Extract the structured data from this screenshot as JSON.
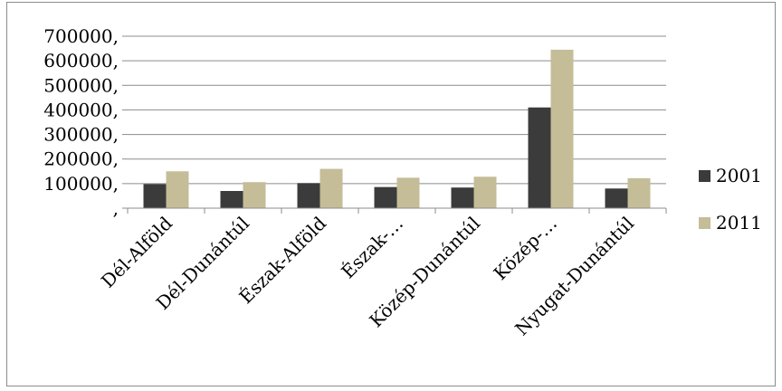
{
  "chart_data": {
    "type": "bar",
    "title": "",
    "xlabel": "",
    "ylabel": "",
    "ylim": [
      0,
      700000
    ],
    "y_ticks": [
      0,
      100000,
      200000,
      300000,
      400000,
      500000,
      600000,
      700000
    ],
    "y_tick_labels": [
      ",",
      "100000,",
      "200000,",
      "300000,",
      "400000,",
      "500000,",
      "600000,",
      "700000,"
    ],
    "grid": true,
    "legend_position": "right",
    "categories": [
      "Dél-Alföld",
      "Dél-Dunántúl",
      "Észak-Alföld",
      "Észak-…",
      "Közép-Dunántúl",
      "Közép-…",
      "Nyugat-Dunántúl"
    ],
    "series": [
      {
        "name": "2001",
        "color": "#3b3b3b",
        "values": [
          98000,
          70000,
          102000,
          86000,
          84000,
          410000,
          80000
        ]
      },
      {
        "name": "2011",
        "color": "#c4bd97",
        "values": [
          150000,
          106000,
          160000,
          124000,
          128000,
          645000,
          122000
        ]
      }
    ]
  }
}
